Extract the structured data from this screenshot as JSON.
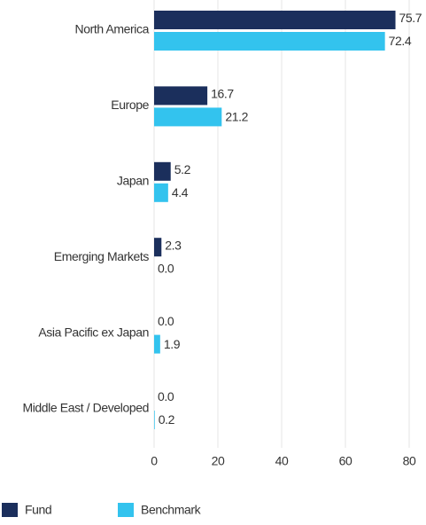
{
  "chart_data": {
    "type": "bar",
    "orientation": "horizontal",
    "categories": [
      "North America",
      "Europe",
      "Japan",
      "Emerging Markets",
      "Asia Pacific ex Japan",
      "Middle East / Developed"
    ],
    "series": [
      {
        "name": "Fund",
        "color": "#1b2f5c",
        "values": [
          75.7,
          16.7,
          5.2,
          2.3,
          0,
          0
        ],
        "value_labels": [
          "75.7",
          "16.7",
          "5.2",
          "2.3",
          "0.0",
          "0.0"
        ]
      },
      {
        "name": "Benchmark",
        "color": "#33c3ee",
        "values": [
          72.4,
          21.2,
          4.4,
          0,
          1.9,
          0.2
        ],
        "value_labels": [
          "72.4",
          "21.2",
          "4.4",
          "0.0",
          "1.9",
          "0.2"
        ]
      }
    ],
    "xlim": [
      0,
      80
    ],
    "xticks": [
      0,
      20,
      40,
      60,
      80
    ],
    "grid": true,
    "legend": "bottom-left"
  }
}
